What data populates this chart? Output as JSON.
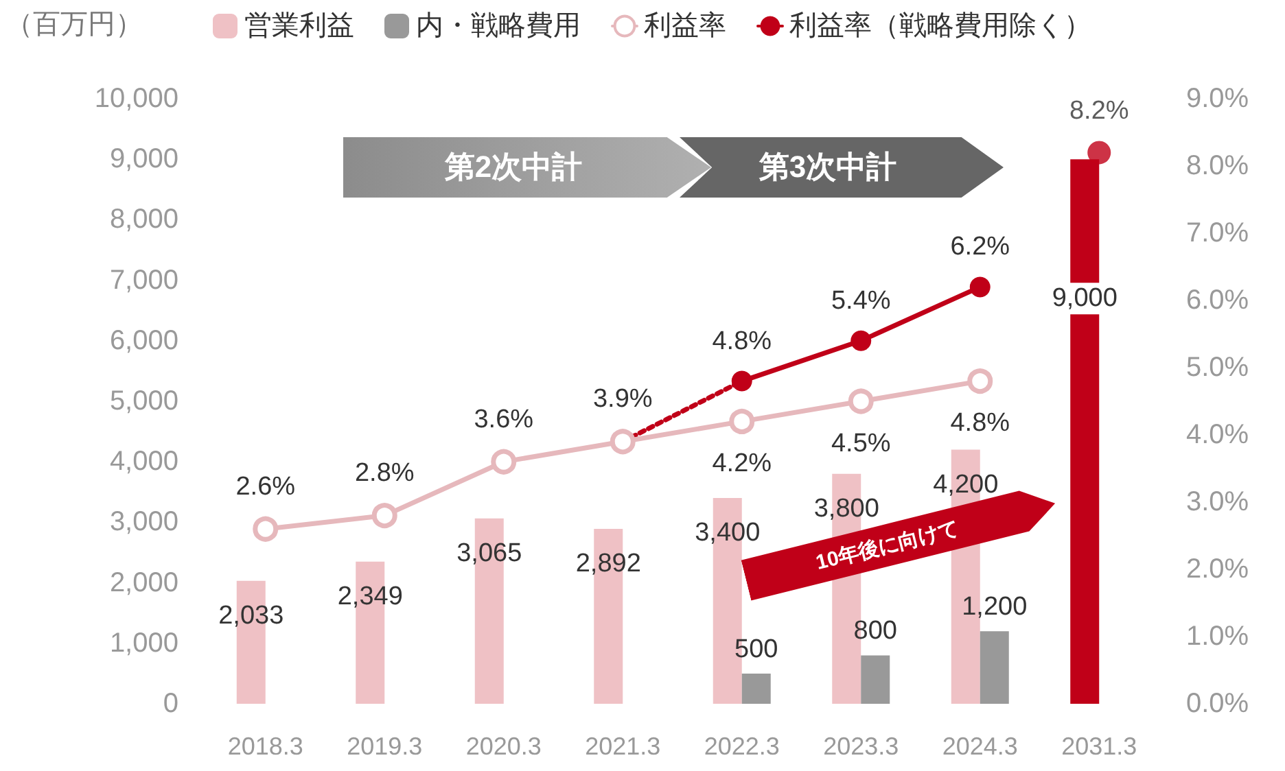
{
  "chart_data": {
    "type": "bar",
    "ylabel": "（百万円）",
    "legend": "top",
    "grid": false,
    "categories": [
      "2018.3",
      "2019.3",
      "2020.3",
      "2021.3",
      "2022.3",
      "2023.3",
      "2024.3",
      "2031.3"
    ],
    "series": [
      {
        "name": "営業利益",
        "color": "#efc1c5",
        "colors": [
          "#efc1c5",
          "#efc1c5",
          "#efc1c5",
          "#efc1c5",
          "#efc1c5",
          "#efc1c5",
          "#efc1c5",
          "#c00018"
        ],
        "values": [
          2033,
          2349,
          3065,
          2892,
          3400,
          3800,
          4200,
          9000
        ],
        "value_labels": [
          "2,033",
          "2,349",
          "3,065",
          "2,892",
          "3,400",
          "3,800",
          "4,200",
          "9,000"
        ]
      },
      {
        "name": "内・戦略費用",
        "color": "#999999",
        "values": [
          null,
          null,
          null,
          null,
          500,
          800,
          1200,
          null
        ],
        "value_labels": [
          null,
          null,
          null,
          null,
          "500",
          "800",
          "1,200",
          null
        ]
      },
      {
        "name": "利益率",
        "type": "line",
        "axis": "y2",
        "color": "#e6b8bc",
        "marker": "circle",
        "values": [
          2.6,
          2.8,
          3.6,
          3.9,
          4.2,
          4.5,
          4.8,
          null
        ],
        "value_labels": [
          "2.6%",
          "2.8%",
          "3.6%",
          "3.9%",
          "4.2%",
          "4.5%",
          "4.8%",
          null
        ]
      },
      {
        "type": "line",
        "axis": "y2",
        "color": "#c00018",
        "line_style": "dotted",
        "values": [
          null,
          null,
          null,
          3.9,
          4.8,
          null,
          null,
          null
        ]
      },
      {
        "name": "利益率（戦略費用除く）",
        "type": "line",
        "axis": "y2",
        "color": "#c00018",
        "marker": "circle",
        "values": [
          null,
          null,
          null,
          null,
          4.8,
          5.4,
          6.2,
          null
        ],
        "value_labels": [
          null,
          null,
          null,
          null,
          "4.8%",
          "5.4%",
          "6.2%",
          null
        ]
      },
      {
        "type": "scatter",
        "axis": "y2",
        "color": "#c00018",
        "marker": "circle",
        "values": [
          null,
          null,
          null,
          null,
          null,
          null,
          null,
          8.2
        ],
        "value_labels": [
          null,
          null,
          null,
          null,
          null,
          null,
          null,
          "8.2%"
        ]
      }
    ],
    "ylim": [
      0,
      10000
    ],
    "yticks": [
      {
        "value": 0,
        "label": "0"
      },
      {
        "value": 1000,
        "label": "1,000"
      },
      {
        "value": 2000,
        "label": "2,000"
      },
      {
        "value": 3000,
        "label": "3,000"
      },
      {
        "value": 4000,
        "label": "4,000"
      },
      {
        "value": 5000,
        "label": "5,000"
      },
      {
        "value": 6000,
        "label": "6,000"
      },
      {
        "value": 7000,
        "label": "7,000"
      },
      {
        "value": 8000,
        "label": "8,000"
      },
      {
        "value": 9000,
        "label": "9,000"
      },
      {
        "value": 10000,
        "label": "10,000"
      }
    ],
    "y2lim": [
      0,
      9
    ],
    "y2ticks": [
      {
        "value": 0,
        "label": "0.0%"
      },
      {
        "value": 1,
        "label": "1.0%"
      },
      {
        "value": 2,
        "label": "2.0%"
      },
      {
        "value": 3,
        "label": "3.0%"
      },
      {
        "value": 4,
        "label": "4.0%"
      },
      {
        "value": 5,
        "label": "5.0%"
      },
      {
        "value": 6,
        "label": "6.0%"
      },
      {
        "value": 7,
        "label": "7.0%"
      },
      {
        "value": 8,
        "label": "8.0%"
      },
      {
        "value": 9,
        "label": "9.0%"
      }
    ],
    "annotations": [
      "第2次中計",
      "第3次中計",
      "10年後に向けて"
    ]
  }
}
